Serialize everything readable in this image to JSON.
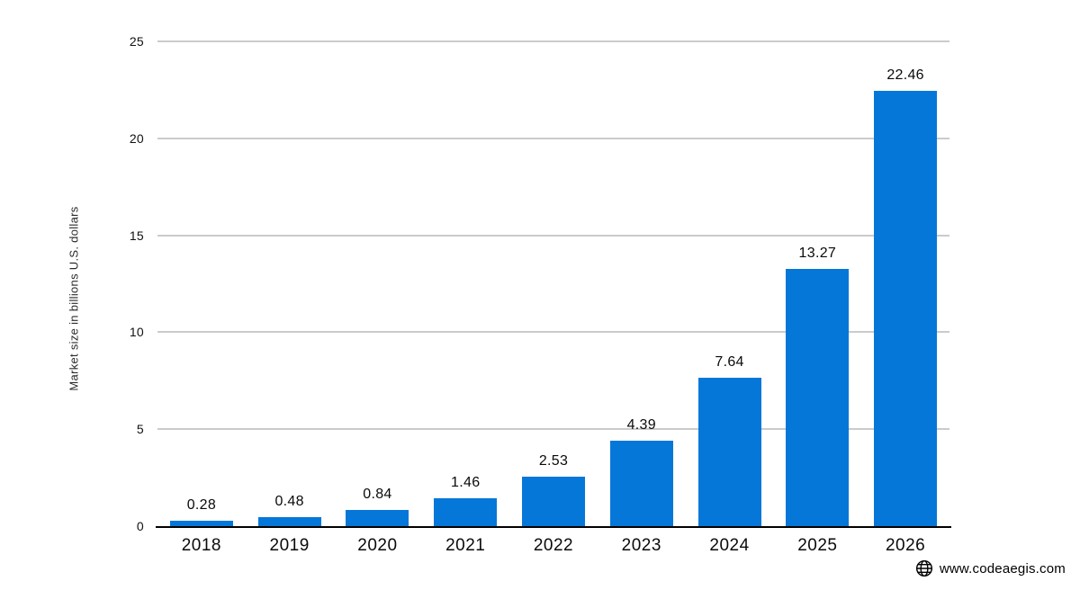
{
  "chart_data": {
    "type": "bar",
    "categories": [
      "2018",
      "2019",
      "2020",
      "2021",
      "2022",
      "2023",
      "2024",
      "2025",
      "2026"
    ],
    "values": [
      0.28,
      0.48,
      0.84,
      1.46,
      2.53,
      4.39,
      7.64,
      13.27,
      22.46
    ],
    "value_labels": [
      "0.28",
      "0.48",
      "0.84",
      "1.46",
      "2.53",
      "4.39",
      "7.64",
      "13.27",
      "22.46"
    ],
    "title": "",
    "xlabel": "",
    "ylabel": "Market size in billions U.S. dollars",
    "ylim": [
      0,
      25
    ],
    "yticks": [
      0,
      5,
      10,
      15,
      20,
      25
    ],
    "grid": true,
    "legend": false,
    "bar_color": "#0577d8",
    "gridline_color": "#cbcbcb",
    "axis_color": "#000000"
  },
  "footer": {
    "icon": "globe-icon",
    "website": "www.codeaegis.com"
  }
}
